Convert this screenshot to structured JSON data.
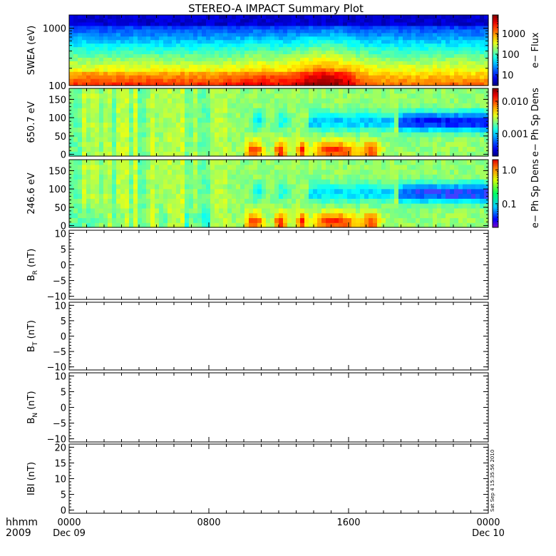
{
  "chart_data": {
    "type": "heatmap",
    "title": "STEREO-A IMPACT Summary Plot",
    "x_axis": {
      "label_line1": "hhmm",
      "label_line2": "2009",
      "range_hours": [
        0,
        24
      ],
      "ticks": [
        {
          "h": 0,
          "label": "0000",
          "date": "Dec 09"
        },
        {
          "h": 8,
          "label": "0800",
          "date": ""
        },
        {
          "h": 16,
          "label": "1600",
          "date": ""
        },
        {
          "h": 24,
          "label": "0000",
          "date": "Dec 10"
        }
      ]
    },
    "timestamp": "Sat Sep  4 15:35:56 2010",
    "panels": [
      {
        "id": "swea",
        "kind": "spectrogram",
        "ylabel": "SWEA (eV)",
        "yscale": "log",
        "ylim": [
          100,
          1700
        ],
        "yticks": [
          {
            "v": 100,
            "label": "100"
          },
          {
            "v": 1000,
            "label": "1000"
          }
        ],
        "colorbar": {
          "label": "e− Flux",
          "scale": "log",
          "range": [
            3,
            8000
          ],
          "ticks": [
            {
              "v": 10,
              "label": "10"
            },
            {
              "v": 100,
              "label": "100"
            },
            {
              "v": 1000,
              "label": "1000"
            }
          ]
        }
      },
      {
        "id": "pad650",
        "kind": "pitch-angle",
        "ylabel": "650.7 eV",
        "yscale": "linear",
        "ylim": [
          -5,
          180
        ],
        "yticks": [
          {
            "v": 0,
            "label": "0"
          },
          {
            "v": 50,
            "label": "50"
          },
          {
            "v": 100,
            "label": "100"
          },
          {
            "v": 150,
            "label": "150"
          }
        ],
        "colorbar": {
          "label": "e− Ph Sp Dens",
          "scale": "log",
          "range": [
            0.0002,
            0.025
          ],
          "ticks": [
            {
              "v": 0.001,
              "label": "0.001"
            },
            {
              "v": 0.01,
              "label": "0.010"
            }
          ]
        }
      },
      {
        "id": "pad246",
        "kind": "pitch-angle",
        "ylabel": "246.6 eV",
        "yscale": "linear",
        "ylim": [
          -5,
          180
        ],
        "yticks": [
          {
            "v": 0,
            "label": "0"
          },
          {
            "v": 50,
            "label": "50"
          },
          {
            "v": 100,
            "label": "100"
          },
          {
            "v": 150,
            "label": "150"
          }
        ],
        "colorbar": {
          "label": "e− Ph Sp Dens",
          "scale": "log",
          "range": [
            0.02,
            2.0
          ],
          "ticks": [
            {
              "v": 0.1,
              "label": "0.1"
            },
            {
              "v": 1.0,
              "label": "1.0"
            }
          ]
        }
      },
      {
        "id": "br",
        "kind": "line-empty",
        "ylabel_main": "B",
        "ylabel_sub": "R",
        "ylabel_unit": " (nT)",
        "ylim": [
          -11,
          11
        ],
        "yticks": [
          {
            "v": -10,
            "label": "−10"
          },
          {
            "v": -5,
            "label": "−5"
          },
          {
            "v": 0,
            "label": "0"
          },
          {
            "v": 5,
            "label": "5"
          },
          {
            "v": 10,
            "label": "10"
          }
        ]
      },
      {
        "id": "bt",
        "kind": "line-empty",
        "ylabel_main": "B",
        "ylabel_sub": "T",
        "ylabel_unit": " (nT)",
        "ylim": [
          -11,
          11
        ],
        "yticks": [
          {
            "v": -10,
            "label": "−10"
          },
          {
            "v": -5,
            "label": "−5"
          },
          {
            "v": 0,
            "label": "0"
          },
          {
            "v": 5,
            "label": "5"
          },
          {
            "v": 10,
            "label": "10"
          }
        ]
      },
      {
        "id": "bn",
        "kind": "line-empty",
        "ylabel_main": "B",
        "ylabel_sub": "N",
        "ylabel_unit": " (nT)",
        "ylim": [
          -11,
          11
        ],
        "yticks": [
          {
            "v": -10,
            "label": "−10"
          },
          {
            "v": -5,
            "label": "−5"
          },
          {
            "v": 0,
            "label": "0"
          },
          {
            "v": 5,
            "label": "5"
          },
          {
            "v": 10,
            "label": "10"
          }
        ]
      },
      {
        "id": "bmag",
        "kind": "line-empty",
        "ylabel_main": "IBI (nT)",
        "ylabel_sub": "",
        "ylabel_unit": "",
        "ylim": [
          -1,
          21
        ],
        "yticks": [
          {
            "v": 0,
            "label": "0"
          },
          {
            "v": 5,
            "label": "5"
          },
          {
            "v": 10,
            "label": "10"
          },
          {
            "v": 15,
            "label": "15"
          },
          {
            "v": 20,
            "label": "20"
          }
        ]
      }
    ]
  }
}
